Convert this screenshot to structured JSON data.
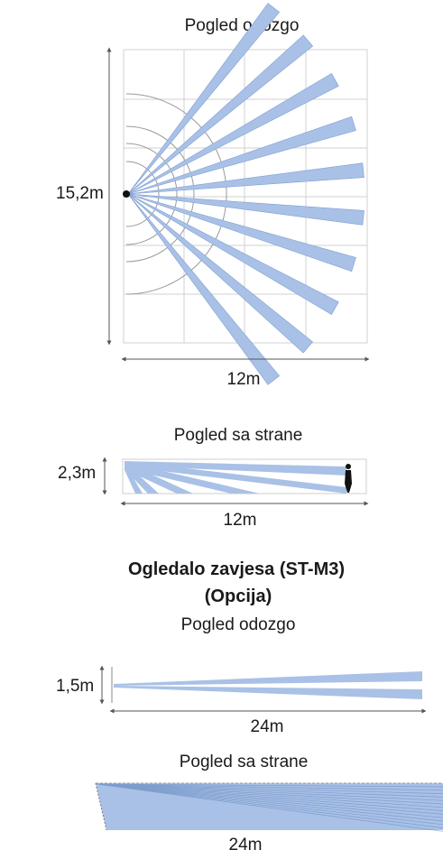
{
  "top_view": {
    "title": "Pogled odozgo",
    "height_label": "15,2m",
    "width_label": "12m"
  },
  "side_view": {
    "title": "Pogled sa strane",
    "height_label": "2,3m",
    "width_label": "12m"
  },
  "curtain": {
    "title_line1": "Ogledalo zavjesa (ST-M3)",
    "title_line2": "(Opcija)",
    "top_title": "Pogled odozgo",
    "top_height_label": "1,5m",
    "top_width_label": "24m",
    "side_title": "Pogled sa strane",
    "side_width_label": "24m"
  },
  "colors": {
    "beam": "#a9c1e6",
    "beam_edge": "#7f9fd1",
    "grid": "#d0d0d0",
    "arc": "#9a9a9a",
    "dim": "#555555"
  }
}
